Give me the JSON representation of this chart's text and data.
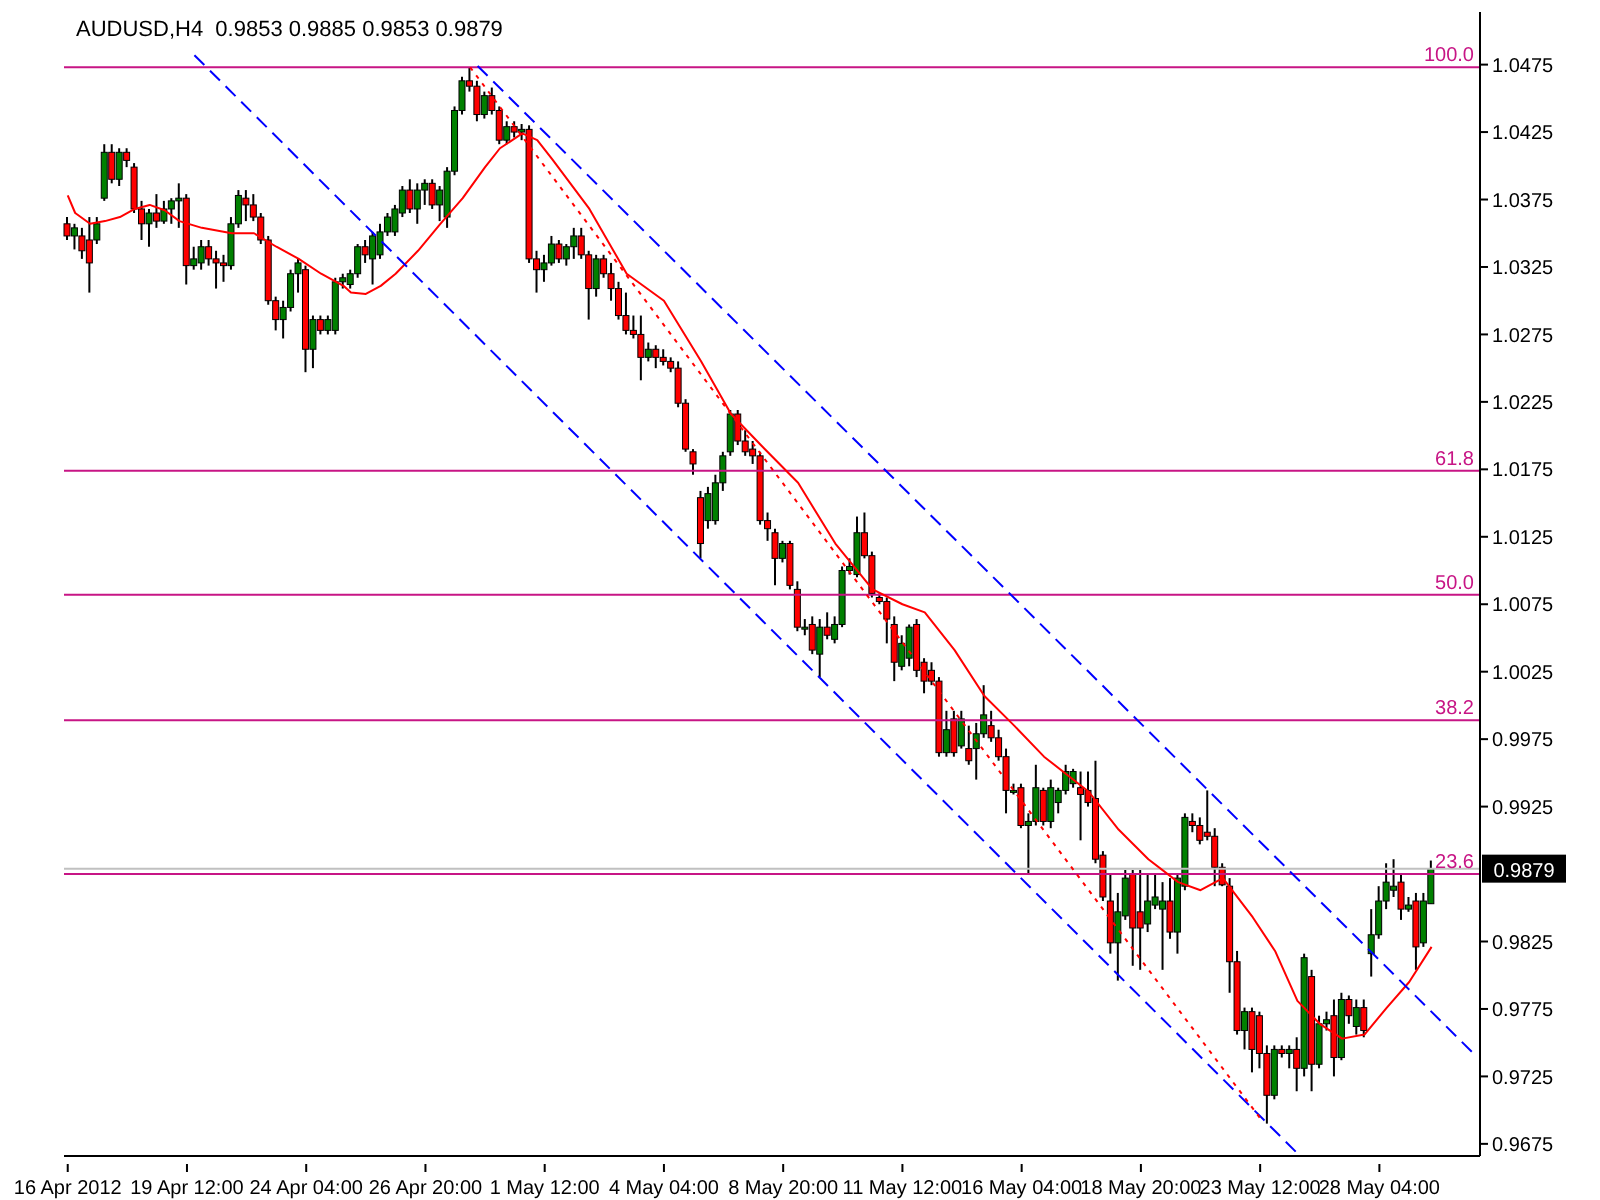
{
  "chart_data": {
    "type": "candlestick",
    "title": "AUDUSD,H4  0.9853 0.9885 0.9853 0.9879",
    "categories": [
      "16 Apr 2012",
      null,
      null,
      null,
      null,
      null,
      null,
      null,
      null,
      null,
      null,
      null,
      null,
      null,
      null,
      null,
      "19 Apr 12:00",
      null,
      null,
      null,
      null,
      null,
      null,
      null,
      null,
      null,
      null,
      null,
      null,
      null,
      null,
      null,
      "24 Apr 04:00",
      null,
      null,
      null,
      null,
      null,
      null,
      null,
      null,
      null,
      null,
      null,
      null,
      null,
      null,
      null,
      "26 Apr 20:00",
      null,
      null,
      null,
      null,
      null,
      null,
      null,
      null,
      null,
      null,
      null,
      null,
      null,
      null,
      null,
      "1 May 12:00",
      null,
      null,
      null,
      null,
      null,
      null,
      null,
      null,
      null,
      null,
      null,
      null,
      null,
      null,
      null,
      "4 May 04:00",
      null,
      null,
      null,
      null,
      null,
      null,
      null,
      null,
      null,
      null,
      null,
      null,
      null,
      null,
      null,
      "8 May 20:00",
      null,
      null,
      null,
      null,
      null,
      null,
      null,
      null,
      null,
      null,
      null,
      null,
      null,
      null,
      null,
      "11 May 12:00",
      null,
      null,
      null,
      null,
      null,
      null,
      null,
      null,
      null,
      null,
      null,
      null,
      null,
      null,
      null,
      "16 May 04:00",
      null,
      null,
      null,
      null,
      null,
      null,
      null,
      null,
      null,
      null,
      null,
      null,
      null,
      null,
      null,
      "18 May 20:00",
      null,
      null,
      null,
      null,
      null,
      null,
      null,
      null,
      null,
      null,
      null,
      null,
      null,
      null,
      null,
      "23 May 12:00",
      null,
      null,
      null,
      null,
      null,
      null,
      null,
      null,
      null,
      null,
      null,
      null,
      null,
      null,
      null,
      "28 May 04:00",
      null,
      null,
      null,
      null,
      null,
      null,
      null,
      null,
      null,
      null,
      null,
      null,
      null
    ],
    "ohlc": [
      [
        1.0357,
        1.0362,
        1.0345,
        1.0348
      ],
      [
        1.0348,
        1.0357,
        1.0338,
        1.0354
      ],
      [
        1.0348,
        1.0354,
        1.0331,
        1.0337
      ],
      [
        1.0345,
        1.0362,
        1.0306,
        1.0328
      ],
      [
        1.0345,
        1.0362,
        1.0342,
        1.0357
      ],
      [
        1.0376,
        1.0416,
        1.0374,
        1.041
      ],
      [
        1.041,
        1.0416,
        1.0387,
        1.039
      ],
      [
        1.039,
        1.0413,
        1.0385,
        1.041
      ],
      [
        1.041,
        1.0413,
        1.0399,
        1.0404
      ],
      [
        1.0399,
        1.0402,
        1.0365,
        1.0368
      ],
      [
        1.0368,
        1.0374,
        1.0345,
        1.0357
      ],
      [
        1.0357,
        1.0368,
        1.034,
        1.0365
      ],
      [
        1.0365,
        1.0379,
        1.0354,
        1.0359
      ],
      [
        1.0359,
        1.0374,
        1.0357,
        1.0368
      ],
      [
        1.0368,
        1.0376,
        1.0357,
        1.0374
      ],
      [
        1.0374,
        1.0387,
        1.0354,
        1.0376
      ],
      [
        1.0376,
        1.0379,
        1.0312,
        1.0326
      ],
      [
        1.0326,
        1.034,
        1.0323,
        1.0331
      ],
      [
        1.0328,
        1.0345,
        1.0323,
        1.034
      ],
      [
        1.034,
        1.0345,
        1.0326,
        1.0331
      ],
      [
        1.0331,
        1.0337,
        1.0309,
        1.0328
      ],
      [
        1.0328,
        1.0334,
        1.0314,
        1.0326
      ],
      [
        1.0326,
        1.0362,
        1.0323,
        1.0357
      ],
      [
        1.0357,
        1.0382,
        1.0354,
        1.0378
      ],
      [
        1.0376,
        1.0382,
        1.0359,
        1.0371
      ],
      [
        1.0371,
        1.0379,
        1.0359,
        1.0362
      ],
      [
        1.0362,
        1.0365,
        1.0342,
        1.0345
      ],
      [
        1.0345,
        1.0348,
        1.0297,
        1.03
      ],
      [
        1.03,
        1.0303,
        1.0278,
        1.0286
      ],
      [
        1.0286,
        1.03,
        1.0272,
        1.0295
      ],
      [
        1.0295,
        1.0323,
        1.0292,
        1.032
      ],
      [
        1.032,
        1.0331,
        1.0306,
        1.0328
      ],
      [
        1.0323,
        1.0326,
        1.0247,
        1.0264
      ],
      [
        1.0264,
        1.0289,
        1.025,
        1.0286
      ],
      [
        1.0286,
        1.0289,
        1.0275,
        1.0278
      ],
      [
        1.0278,
        1.0289,
        1.0275,
        1.0286
      ],
      [
        1.0278,
        1.0317,
        1.0275,
        1.0314
      ],
      [
        1.0314,
        1.032,
        1.0309,
        1.0317
      ],
      [
        1.0312,
        1.0323,
        1.0309,
        1.032
      ],
      [
        1.032,
        1.0342,
        1.0317,
        1.034
      ],
      [
        1.034,
        1.0345,
        1.0328,
        1.0334
      ],
      [
        1.0331,
        1.0351,
        1.0312,
        1.0348
      ],
      [
        1.0334,
        1.0357,
        1.0331,
        1.0351
      ],
      [
        1.0351,
        1.0365,
        1.0348,
        1.0362
      ],
      [
        1.0351,
        1.0371,
        1.0348,
        1.0368
      ],
      [
        1.0365,
        1.0385,
        1.0362,
        1.0382
      ],
      [
        1.0382,
        1.039,
        1.0365,
        1.0368
      ],
      [
        1.0368,
        1.0387,
        1.0357,
        1.0382
      ],
      [
        1.0382,
        1.039,
        1.0371,
        1.0387
      ],
      [
        1.0387,
        1.039,
        1.0368,
        1.0371
      ],
      [
        1.0371,
        1.0385,
        1.0359,
        1.0382
      ],
      [
        1.0362,
        1.0399,
        1.0354,
        1.0396
      ],
      [
        1.0396,
        1.0444,
        1.0393,
        1.0441
      ],
      [
        1.0441,
        1.0466,
        1.0438,
        1.0463
      ],
      [
        1.0463,
        1.0473,
        1.0455,
        1.0459
      ],
      [
        1.0459,
        1.0463,
        1.0433,
        1.0438
      ],
      [
        1.0438,
        1.0455,
        1.0435,
        1.0452
      ],
      [
        1.0452,
        1.0458,
        1.0438,
        1.0441
      ],
      [
        1.0441,
        1.0444,
        1.0416,
        1.0419
      ],
      [
        1.0419,
        1.0433,
        1.0416,
        1.0429
      ],
      [
        1.0429,
        1.0433,
        1.0421,
        1.0425
      ],
      [
        1.0425,
        1.0431,
        1.0419,
        1.0427
      ],
      [
        1.0427,
        1.043,
        1.0328,
        1.0331
      ],
      [
        1.0331,
        1.0337,
        1.0306,
        1.0323
      ],
      [
        1.0323,
        1.0334,
        1.0314,
        1.0328
      ],
      [
        1.0328,
        1.0348,
        1.0326,
        1.0342
      ],
      [
        1.0342,
        1.0345,
        1.0328,
        1.0331
      ],
      [
        1.0331,
        1.0342,
        1.0326,
        1.034
      ],
      [
        1.034,
        1.0354,
        1.0331,
        1.0348
      ],
      [
        1.0348,
        1.0354,
        1.0331,
        1.0334
      ],
      [
        1.0334,
        1.0337,
        1.0286,
        1.0309
      ],
      [
        1.0309,
        1.0334,
        1.0303,
        1.0331
      ],
      [
        1.0331,
        1.0334,
        1.0317,
        1.032
      ],
      [
        1.032,
        1.0328,
        1.03,
        1.0309
      ],
      [
        1.0309,
        1.0314,
        1.0286,
        1.0289
      ],
      [
        1.0289,
        1.0306,
        1.0275,
        1.0278
      ],
      [
        1.0278,
        1.0289,
        1.0272,
        1.0275
      ],
      [
        1.0275,
        1.0289,
        1.0241,
        1.0258
      ],
      [
        1.0258,
        1.0269,
        1.0255,
        1.0264
      ],
      [
        1.0264,
        1.0267,
        1.025,
        1.0258
      ],
      [
        1.0258,
        1.0264,
        1.0252,
        1.0255
      ],
      [
        1.0255,
        1.0258,
        1.0247,
        1.025
      ],
      [
        1.025,
        1.0255,
        1.0221,
        1.0224
      ],
      [
        1.0224,
        1.0227,
        1.0188,
        1.019
      ],
      [
        1.0188,
        1.019,
        1.0171,
        1.0179
      ],
      [
        1.0154,
        1.0159,
        1.0109,
        1.012
      ],
      [
        1.0137,
        1.0162,
        1.0131,
        1.0157
      ],
      [
        1.0137,
        1.0171,
        1.0134,
        1.0165
      ],
      [
        1.0165,
        1.0188,
        1.0159,
        1.0185
      ],
      [
        1.0188,
        1.0219,
        1.0185,
        1.0216
      ],
      [
        1.0216,
        1.0219,
        1.0193,
        1.0196
      ],
      [
        1.0196,
        1.0204,
        1.0185,
        1.0188
      ],
      [
        1.019,
        1.0196,
        1.0179,
        1.0185
      ],
      [
        1.0185,
        1.0188,
        1.0134,
        1.0137
      ],
      [
        1.0137,
        1.0143,
        1.0122,
        1.0131
      ],
      [
        1.0128,
        1.0131,
        1.0089,
        1.0109
      ],
      [
        1.0109,
        1.0122,
        1.0106,
        1.012
      ],
      [
        1.012,
        1.0122,
        1.0086,
        1.0089
      ],
      [
        1.0086,
        1.0092,
        1.0055,
        1.0058
      ],
      [
        1.0058,
        1.0064,
        1.0052,
        1.0058
      ],
      [
        1.006,
        1.0066,
        1.0038,
        1.0041
      ],
      [
        1.0038,
        1.0064,
        1.0021,
        1.0058
      ],
      [
        1.0058,
        1.0069,
        1.0049,
        1.0052
      ],
      [
        1.0049,
        1.0066,
        1.0046,
        1.006
      ],
      [
        1.006,
        1.0103,
        1.0058,
        1.01
      ],
      [
        1.01,
        1.0109,
        1.0097,
        1.0103
      ],
      [
        1.0097,
        1.014,
        1.0095,
        1.0128
      ],
      [
        1.0128,
        1.0143,
        1.0109,
        1.0111
      ],
      [
        1.0111,
        1.0114,
        1.008,
        1.0083
      ],
      [
        1.008,
        1.0083,
        1.0075,
        1.0077
      ],
      [
        1.0077,
        1.008,
        1.0046,
        1.0064
      ],
      [
        1.006,
        1.0066,
        1.0018,
        1.0032
      ],
      [
        1.0029,
        1.0052,
        1.0026,
        1.0046
      ],
      [
        1.0035,
        1.006,
        1.0029,
        1.0058
      ],
      [
        1.006,
        1.0064,
        1.0021,
        1.0026
      ],
      [
        1.0032,
        1.0035,
        1.0009,
        1.0018
      ],
      [
        1.0026,
        1.0032,
        1.0015,
        1.0018
      ],
      [
        1.0018,
        1.0021,
        0.9962,
        0.9965
      ],
      [
        0.9965,
        0.9996,
        0.9962,
        0.9982
      ],
      [
        0.999,
        0.9996,
        0.9962,
        0.9965
      ],
      [
        0.997,
        0.9996,
        0.9968,
        0.999
      ],
      [
        0.9968,
        0.9985,
        0.9956,
        0.9959
      ],
      [
        0.9968,
        0.9987,
        0.9945,
        0.9979
      ],
      [
        0.9979,
        1.0015,
        0.9976,
        0.9993
      ],
      [
        0.9985,
        0.9996,
        0.9973,
        0.9976
      ],
      [
        0.9976,
        0.9982,
        0.9959,
        0.9962
      ],
      [
        0.9962,
        0.9968,
        0.992,
        0.9937
      ],
      [
        0.9937,
        0.9942,
        0.9934,
        0.9937
      ],
      [
        0.9939,
        0.9942,
        0.9909,
        0.9911
      ],
      [
        0.9911,
        0.992,
        0.9875,
        0.9914
      ],
      [
        0.9914,
        0.9956,
        0.9911,
        0.9939
      ],
      [
        0.9937,
        0.9939,
        0.9911,
        0.9914
      ],
      [
        0.9914,
        0.9945,
        0.9909,
        0.9939
      ],
      [
        0.9928,
        0.9939,
        0.992,
        0.9937
      ],
      [
        0.9937,
        0.9956,
        0.9934,
        0.9951
      ],
      [
        0.9942,
        0.9953,
        0.9939,
        0.9951
      ],
      [
        0.9939,
        0.9951,
        0.99,
        0.9934
      ],
      [
        0.9937,
        0.9951,
        0.9925,
        0.9928
      ],
      [
        0.9931,
        0.9959,
        0.9883,
        0.9886
      ],
      [
        0.9889,
        0.9892,
        0.9855,
        0.9858
      ],
      [
        0.9855,
        0.9875,
        0.9816,
        0.9824
      ],
      [
        0.9824,
        0.9861,
        0.9796,
        0.9847
      ],
      [
        0.9844,
        0.9878,
        0.9841,
        0.9872
      ],
      [
        0.9875,
        0.9878,
        0.9807,
        0.9835
      ],
      [
        0.9847,
        0.9878,
        0.9804,
        0.9835
      ],
      [
        0.9838,
        0.9875,
        0.9832,
        0.9855
      ],
      [
        0.9852,
        0.9875,
        0.9849,
        0.9858
      ],
      [
        0.9849,
        0.9869,
        0.9804,
        0.9855
      ],
      [
        0.9855,
        0.9872,
        0.9827,
        0.9832
      ],
      [
        0.9832,
        0.9875,
        0.9816,
        0.9872
      ],
      [
        0.9866,
        0.992,
        0.9863,
        0.9917
      ],
      [
        0.9914,
        0.992,
        0.9906,
        0.9911
      ],
      [
        0.9911,
        0.9917,
        0.9897,
        0.99
      ],
      [
        0.9906,
        0.9937,
        0.99,
        0.9903
      ],
      [
        0.9903,
        0.9909,
        0.9866,
        0.988
      ],
      [
        0.988,
        0.9883,
        0.9866,
        0.9867
      ],
      [
        0.9866,
        0.9872,
        0.9787,
        0.981
      ],
      [
        0.981,
        0.9818,
        0.9756,
        0.9759
      ],
      [
        0.9759,
        0.9776,
        0.9745,
        0.9773
      ],
      [
        0.9773,
        0.9776,
        0.9728,
        0.9745
      ],
      [
        0.977,
        0.9773,
        0.9731,
        0.9742
      ],
      [
        0.9742,
        0.9748,
        0.969,
        0.9711
      ],
      [
        0.9711,
        0.9748,
        0.9708,
        0.9745
      ],
      [
        0.9745,
        0.9748,
        0.9739,
        0.9742
      ],
      [
        0.9742,
        0.9748,
        0.9731,
        0.9745
      ],
      [
        0.9745,
        0.9754,
        0.9714,
        0.9731
      ],
      [
        0.9731,
        0.9816,
        0.9725,
        0.9813
      ],
      [
        0.9799,
        0.9804,
        0.9714,
        0.9734
      ],
      [
        0.9734,
        0.977,
        0.9731,
        0.9764
      ],
      [
        0.9764,
        0.9773,
        0.9759,
        0.9767
      ],
      [
        0.977,
        0.9782,
        0.9725,
        0.9739
      ],
      [
        0.9739,
        0.9787,
        0.9737,
        0.9782
      ],
      [
        0.9782,
        0.9785,
        0.9764,
        0.977
      ],
      [
        0.9762,
        0.9782,
        0.9756,
        0.9776
      ],
      [
        0.9776,
        0.9782,
        0.9754,
        0.9759
      ],
      [
        0.9816,
        0.9849,
        0.9799,
        0.983
      ],
      [
        0.983,
        0.9866,
        0.9827,
        0.9855
      ],
      [
        0.9855,
        0.9883,
        0.9849,
        0.9869
      ],
      [
        0.9863,
        0.9886,
        0.9858,
        0.9866
      ],
      [
        0.9869,
        0.9875,
        0.9841,
        0.9849
      ],
      [
        0.9849,
        0.9858,
        0.9847,
        0.9852
      ],
      [
        0.9855,
        0.9861,
        0.9804,
        0.9821
      ],
      [
        0.9824,
        0.9861,
        0.9821,
        0.9855
      ],
      [
        0.9853,
        0.9885,
        0.9853,
        0.9879
      ],
      null,
      null,
      null,
      null,
      null,
      null
    ],
    "series": [
      {
        "type": "line",
        "color": "#ff0000",
        "values": [
          1.0378,
          1.0365,
          null,
          1.0357,
          null,
          1.0359,
          null,
          1.0362,
          null,
          1.0368,
          null,
          1.0371,
          null,
          1.0367,
          null,
          1.0359,
          null,
          null,
          1.0354,
          null,
          null,
          null,
          1.035,
          null,
          null,
          1.035,
          null,
          null,
          1.034,
          null,
          null,
          1.0331,
          null,
          null,
          1.032,
          null,
          null,
          1.0311,
          1.0306,
          null,
          1.0305,
          null,
          1.0311,
          null,
          1.032,
          null,
          null,
          1.0337,
          null,
          null,
          1.0357,
          null,
          null,
          1.0376,
          null,
          null,
          1.0399,
          null,
          1.0413,
          null,
          null,
          1.0424,
          null,
          1.0419,
          null,
          1.0405,
          null,
          null,
          null,
          null,
          1.0368,
          null,
          null,
          null,
          null,
          1.032,
          null,
          null,
          null,
          null,
          1.03,
          null,
          null,
          null,
          null,
          1.0255,
          null,
          null,
          null,
          1.0216,
          null,
          null,
          null,
          1.0193,
          null,
          null,
          null,
          null,
          1.0165,
          null,
          null,
          null,
          null,
          1.012,
          null,
          null,
          null,
          null,
          1.0086,
          null,
          null,
          null,
          1.0075,
          null,
          null,
          1.0069,
          null,
          null,
          null,
          1.0041,
          null,
          null,
          null,
          1.0007,
          null,
          null,
          null,
          0.9985,
          null,
          null,
          null,
          0.9962,
          null,
          null,
          null,
          null,
          null,
          0.9936,
          null,
          null,
          null,
          0.9908,
          null,
          null,
          null,
          0.9886,
          null,
          null,
          null,
          0.9869,
          null,
          null,
          0.9863,
          null,
          null,
          0.9872,
          null,
          null,
          null,
          0.9843,
          null,
          null,
          0.9818,
          null,
          null,
          0.9781,
          null,
          null,
          0.9764,
          null,
          null,
          0.9753,
          null,
          null,
          0.9756,
          null,
          null,
          0.9776,
          null,
          null,
          0.9795,
          null,
          null,
          0.9821,
          null,
          null,
          null,
          null,
          null,
          null
        ]
      },
      {
        "type": "line",
        "color": "#0000ff",
        "line_style": "dashed",
        "values": [
          null,
          null,
          null,
          null,
          null,
          null,
          null,
          null,
          null,
          null,
          null,
          null,
          null,
          null,
          null,
          null,
          null,
          null,
          null,
          null,
          null,
          null,
          null,
          null,
          null,
          null,
          null,
          null,
          null,
          null,
          null,
          null,
          null,
          null,
          null,
          null,
          null,
          null,
          null,
          null,
          null,
          null,
          null,
          null,
          null,
          null,
          null,
          null,
          null,
          null,
          null,
          null,
          null,
          null,
          null,
          1.0474,
          null,
          null,
          null,
          null,
          null,
          null,
          null,
          null,
          null,
          null,
          null,
          null,
          null,
          null,
          null,
          null,
          null,
          null,
          null,
          null,
          null,
          null,
          null,
          null,
          null,
          null,
          null,
          null,
          null,
          null,
          null,
          null,
          null,
          null,
          null,
          null,
          null,
          null,
          null,
          null,
          null,
          null,
          null,
          null,
          null,
          null,
          null,
          null,
          null,
          null,
          null,
          null,
          null,
          null,
          null,
          null,
          null,
          null,
          null,
          null,
          null,
          null,
          null,
          null,
          null,
          null,
          null,
          null,
          null,
          null,
          null,
          null,
          null,
          null,
          null,
          null,
          null,
          null,
          null,
          null,
          null,
          null,
          null,
          null,
          null,
          null,
          null,
          null,
          null,
          null,
          null,
          null,
          null,
          null,
          null,
          null,
          null,
          null,
          null,
          null,
          null,
          null,
          null,
          null,
          null,
          null,
          null,
          null,
          null,
          null,
          null,
          null,
          null,
          null,
          null,
          null,
          null,
          null,
          null,
          null,
          null,
          null,
          null,
          null,
          null,
          null,
          null,
          null,
          null,
          null,
          null,
          null,
          null,
          0.974
        ]
      },
      {
        "type": "line",
        "color": "#0000ff",
        "line_style": "dashed",
        "values": [
          null,
          null,
          null,
          null,
          null,
          null,
          null,
          null,
          null,
          null,
          null,
          null,
          null,
          null,
          null,
          null,
          null,
          1.0482,
          null,
          null,
          null,
          null,
          null,
          null,
          null,
          null,
          null,
          null,
          null,
          null,
          null,
          null,
          null,
          null,
          null,
          null,
          null,
          null,
          null,
          null,
          null,
          null,
          null,
          null,
          null,
          null,
          null,
          null,
          null,
          null,
          null,
          null,
          null,
          null,
          null,
          null,
          null,
          null,
          null,
          null,
          null,
          null,
          null,
          null,
          null,
          null,
          null,
          null,
          null,
          null,
          null,
          null,
          null,
          null,
          null,
          null,
          null,
          null,
          null,
          null,
          null,
          null,
          null,
          null,
          null,
          null,
          null,
          null,
          null,
          null,
          null,
          null,
          null,
          null,
          null,
          null,
          null,
          null,
          null,
          null,
          null,
          null,
          null,
          null,
          null,
          null,
          null,
          null,
          null,
          null,
          null,
          null,
          null,
          null,
          null,
          null,
          null,
          null,
          null,
          null,
          null,
          null,
          null,
          null,
          null,
          null,
          null,
          null,
          null,
          null,
          null,
          null,
          null,
          null,
          null,
          null,
          null,
          null,
          null,
          null,
          null,
          null,
          null,
          null,
          null,
          null,
          null,
          null,
          null,
          null,
          null,
          null,
          null,
          null,
          null,
          null,
          null,
          null,
          null,
          null,
          null,
          null,
          null,
          null,
          null,
          0.9668,
          null,
          null,
          null,
          null,
          null,
          null,
          null,
          null,
          null,
          null,
          null,
          null,
          null,
          null,
          null,
          null,
          null,
          null,
          null,
          null,
          null,
          null,
          null,
          null
        ]
      },
      {
        "type": "line",
        "color": "#ff0000",
        "line_style": "dotted",
        "values": [
          null,
          null,
          null,
          null,
          null,
          null,
          null,
          null,
          null,
          null,
          null,
          null,
          null,
          null,
          null,
          null,
          null,
          null,
          null,
          null,
          null,
          null,
          null,
          null,
          null,
          null,
          null,
          null,
          null,
          null,
          null,
          null,
          null,
          null,
          null,
          null,
          null,
          null,
          null,
          null,
          null,
          null,
          null,
          null,
          null,
          null,
          null,
          null,
          null,
          null,
          null,
          null,
          null,
          null,
          1.0473,
          null,
          null,
          null,
          null,
          null,
          null,
          null,
          null,
          null,
          null,
          null,
          null,
          null,
          null,
          null,
          null,
          null,
          null,
          null,
          null,
          null,
          null,
          null,
          null,
          null,
          null,
          null,
          null,
          null,
          null,
          null,
          null,
          null,
          null,
          null,
          null,
          null,
          null,
          null,
          null,
          null,
          null,
          null,
          null,
          null,
          null,
          null,
          null,
          null,
          null,
          null,
          null,
          null,
          null,
          null,
          null,
          null,
          null,
          null,
          null,
          null,
          null,
          null,
          null,
          null,
          null,
          null,
          null,
          null,
          null,
          null,
          null,
          null,
          null,
          null,
          null,
          null,
          null,
          null,
          null,
          null,
          null,
          null,
          null,
          null,
          null,
          null,
          null,
          null,
          null,
          null,
          null,
          null,
          null,
          null,
          null,
          null,
          null,
          null,
          null,
          null,
          null,
          null,
          null,
          null,
          0.9694,
          null,
          null,
          null,
          null,
          null,
          null,
          null,
          null,
          null,
          null,
          null,
          null,
          null,
          null,
          null,
          null,
          null,
          null,
          null,
          null,
          null,
          null,
          null,
          null,
          null,
          null,
          null,
          null,
          null
        ]
      }
    ],
    "ylim": [
      0.9666,
      1.0514
    ],
    "yticks": [
      1.0475,
      1.0425,
      1.0375,
      1.0325,
      1.0275,
      1.0225,
      1.0175,
      1.0125,
      1.0075,
      1.0025,
      0.9975,
      0.9925,
      0.9825,
      0.9775,
      0.9725,
      0.9675
    ],
    "ref_lines": [
      {
        "axis": "y",
        "value": 1.0473,
        "color": "#c71585"
      },
      {
        "axis": "y",
        "value": 1.0174,
        "color": "#c71585"
      },
      {
        "axis": "y",
        "value": 1.0082,
        "color": "#c71585"
      },
      {
        "axis": "y",
        "value": 0.9989,
        "color": "#c71585"
      },
      {
        "axis": "y",
        "value": 0.9875,
        "color": "#c71585"
      },
      {
        "axis": "y",
        "value": 0.9879,
        "label": "0.9879",
        "color": "#c0c0c0"
      }
    ],
    "annotations": [
      {
        "text": "100.0",
        "y": 1.0473
      },
      {
        "text": "61.8",
        "y": 1.0174
      },
      {
        "text": "50.0",
        "y": 1.0082
      },
      {
        "text": "38.2",
        "y": 0.9989
      },
      {
        "text": "23.6",
        "y": 0.9875
      }
    ]
  }
}
